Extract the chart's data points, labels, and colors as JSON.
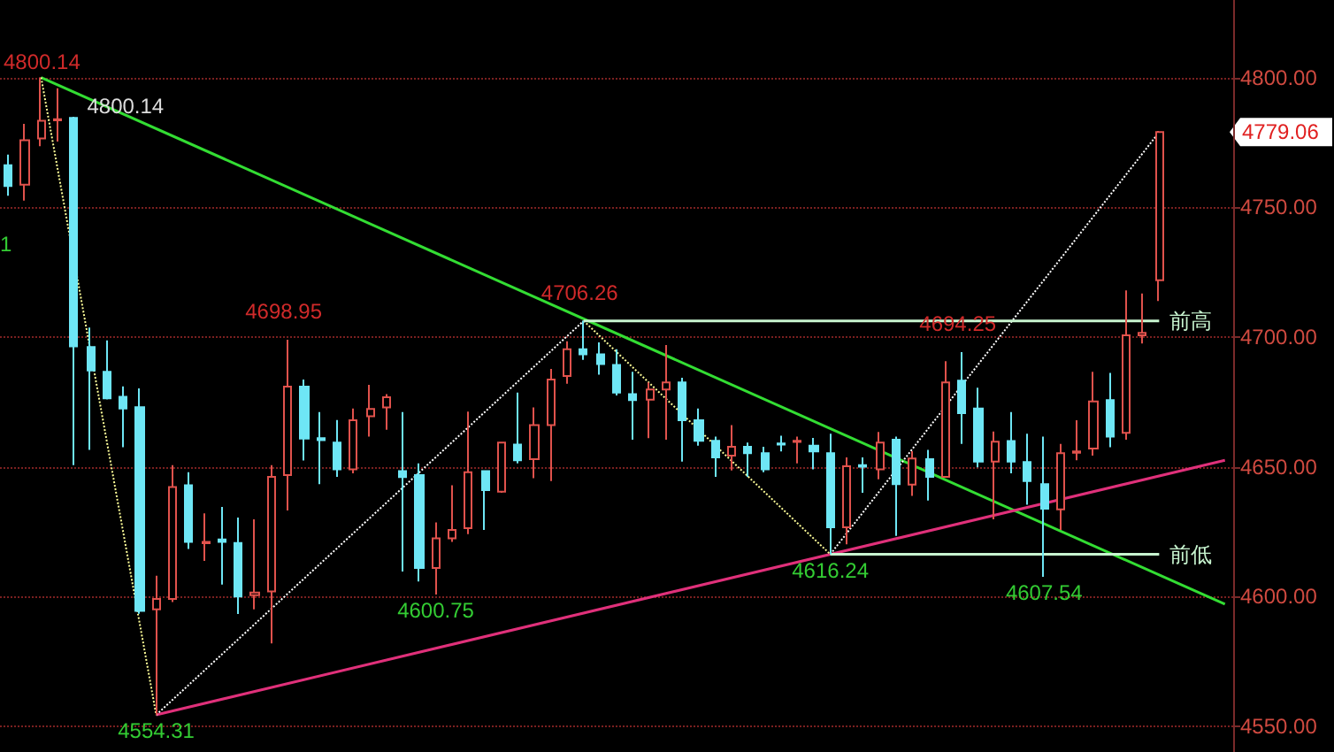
{
  "chart_data": {
    "type": "candlestick",
    "categories": [
      null,
      null,
      null,
      null,
      null,
      null,
      null,
      null,
      null,
      null,
      null,
      null,
      null,
      null,
      null,
      null,
      null,
      null,
      null,
      null,
      null,
      null,
      null,
      null,
      null,
      null,
      null,
      null,
      null,
      null,
      null,
      null,
      null,
      null,
      null,
      null,
      null,
      null,
      null,
      null,
      null,
      null,
      null,
      null,
      null,
      null,
      null,
      null,
      null,
      null,
      null,
      null,
      null,
      null,
      null,
      null,
      null,
      null,
      null,
      null,
      null,
      null,
      null,
      null,
      null,
      null,
      null,
      null,
      null,
      null,
      null,
      null,
      null,
      null,
      null
    ],
    "ohlc": [
      [
        4766.3,
        4770.4,
        4754.5,
        4758.3
      ],
      [
        4758.8,
        4782.2,
        4752.6,
        4775.9
      ],
      [
        4776.6,
        4800.14,
        4773.6,
        4783.4
      ],
      [
        4783.6,
        4796,
        4775.4,
        4784
      ],
      [
        4784.5,
        4785,
        4650.6,
        4696.4
      ],
      [
        4696.2,
        4703.7,
        4656.5,
        4687.1
      ],
      [
        4686.6,
        4698.7,
        4676,
        4676.4
      ],
      [
        4677,
        4681,
        4657.5,
        4672.5
      ],
      [
        4673,
        4680.2,
        4593.3,
        4594.4
      ],
      [
        4595,
        4608,
        4554.31,
        4599
      ],
      [
        4599,
        4650.6,
        4597.8,
        4642.2
      ],
      [
        4642.9,
        4647.9,
        4618.3,
        4621
      ],
      [
        4620.5,
        4632,
        4613.7,
        4621
      ],
      [
        4622,
        4634.5,
        4604.6,
        4621
      ],
      [
        4620.6,
        4630.4,
        4593.2,
        4600
      ],
      [
        4600.5,
        4629.7,
        4595,
        4601.5
      ],
      [
        4601.9,
        4650.6,
        4581.9,
        4646.1
      ],
      [
        4646.8,
        4698.95,
        4633.1,
        4680.9
      ],
      [
        4680.9,
        4683.6,
        4652.4,
        4660.9
      ],
      [
        4661,
        4671.1,
        4643.3,
        4660.3
      ],
      [
        4659.3,
        4668,
        4646.1,
        4649
      ],
      [
        4649,
        4672.5,
        4647.5,
        4667.9
      ],
      [
        4669.5,
        4681.6,
        4661.6,
        4672.3
      ],
      [
        4672.9,
        4678,
        4664.3,
        4676.8
      ],
      [
        4648.3,
        4671.1,
        4609.6,
        4646
      ],
      [
        4646.8,
        4651.3,
        4605.8,
        4611
      ],
      [
        4611,
        4628.5,
        4600.75,
        4622.4
      ],
      [
        4622.4,
        4642.9,
        4621,
        4625.6
      ],
      [
        4626.3,
        4671.3,
        4624,
        4647.9
      ],
      [
        4648.3,
        4648.3,
        4625.6,
        4641
      ],
      [
        4640.4,
        4659.3,
        4640,
        4659.3
      ],
      [
        4658.6,
        4678.6,
        4651.3,
        4652.5
      ],
      [
        4652.9,
        4672.9,
        4645.6,
        4666.1
      ],
      [
        4666.1,
        4687.7,
        4644.5,
        4683.6
      ],
      [
        4685,
        4698.4,
        4682,
        4695.3
      ],
      [
        4695.3,
        4706.26,
        4691.2,
        4693.4
      ],
      [
        4693.4,
        4698,
        4685.5,
        4689.6
      ],
      [
        4689.3,
        4695.3,
        4677.5,
        4678.6
      ],
      [
        4678,
        4686.6,
        4660.4,
        4675.7
      ],
      [
        4675.9,
        4682.5,
        4661,
        4679.8
      ],
      [
        4679.8,
        4696.9,
        4660.4,
        4682.5
      ],
      [
        4682.5,
        4684.3,
        4652,
        4667.9
      ],
      [
        4667.9,
        4672.5,
        4658.1,
        4660
      ],
      [
        4660,
        4661.6,
        4646.1,
        4653.6
      ],
      [
        4654.3,
        4666.1,
        4648.6,
        4657.7
      ],
      [
        4657.7,
        4659.3,
        4646.1,
        4655.2
      ],
      [
        4655.2,
        4657.7,
        4647.9,
        4649
      ],
      [
        4659,
        4662,
        4655.9,
        4658.6
      ],
      [
        4659.6,
        4661.6,
        4651.3,
        4660
      ],
      [
        4658.1,
        4661.1,
        4649,
        4655.9
      ],
      [
        4655.2,
        4662.7,
        4616.24,
        4626.7
      ],
      [
        4626.7,
        4653.6,
        4620.1,
        4650.2
      ],
      [
        4650.6,
        4653.6,
        4640,
        4650
      ],
      [
        4649,
        4663.4,
        4645.2,
        4659.3
      ],
      [
        4660.4,
        4661.6,
        4623.3,
        4643.3
      ],
      [
        4643.1,
        4656,
        4638.8,
        4653.2
      ],
      [
        4652.9,
        4656.5,
        4637,
        4646.1
      ],
      [
        4646.1,
        4690.7,
        4646.1,
        4682.5
      ],
      [
        4683.2,
        4694.25,
        4658.8,
        4670.7
      ],
      [
        4672.5,
        4680.5,
        4649.8,
        4652
      ],
      [
        4652,
        4663.6,
        4629.7,
        4659.7
      ],
      [
        4659.9,
        4671.1,
        4647.5,
        4652
      ],
      [
        4651.8,
        4662.7,
        4635.4,
        4644.5
      ],
      [
        4643.3,
        4661.6,
        4607.54,
        4633.8
      ],
      [
        4633.6,
        4658.8,
        4625.6,
        4655.2
      ],
      [
        4655.4,
        4667.9,
        4652.5,
        4655.9
      ],
      [
        4657,
        4686.6,
        4654.3,
        4675.2
      ],
      [
        4675.7,
        4686.2,
        4657.5,
        4661.6
      ],
      [
        4663.1,
        4718,
        4660.4,
        4700.7
      ],
      [
        4700.7,
        4716.8,
        4697.5,
        4701.6
      ],
      [
        4721.9,
        4779.5,
        4713.9,
        4779.06
      ],
      null,
      null,
      null,
      null
    ],
    "colors": [
      "#6ee6f5",
      "#e0524c",
      "#e0524c",
      "#e0524c",
      "#6ee6f5",
      "#6ee6f5",
      "#6ee6f5",
      "#6ee6f5",
      "#6ee6f5",
      "#e0524c",
      "#e0524c",
      "#6ee6f5",
      "#e0524c",
      "#6ee6f5",
      "#6ee6f5",
      "#e0524c",
      "#e0524c",
      "#e0524c",
      "#6ee6f5",
      "#6ee6f5",
      "#6ee6f5",
      "#e0524c",
      "#e0524c",
      "#e0524c",
      "#6ee6f5",
      "#6ee6f5",
      "#e0524c",
      "#e0524c",
      "#e0524c",
      "#6ee6f5",
      "#e0524c",
      "#6ee6f5",
      "#e0524c",
      "#e0524c",
      "#e0524c",
      "#6ee6f5",
      "#6ee6f5",
      "#6ee6f5",
      "#6ee6f5",
      "#e0524c",
      "#e0524c",
      "#6ee6f5",
      "#6ee6f5",
      "#6ee6f5",
      "#e0524c",
      "#6ee6f5",
      "#6ee6f5",
      "#6ee6f5",
      "#e0524c",
      "#6ee6f5",
      "#6ee6f5",
      "#e0524c",
      "#6ee6f5",
      "#e0524c",
      "#6ee6f5",
      "#e0524c",
      "#6ee6f5",
      "#e0524c",
      "#6ee6f5",
      "#6ee6f5",
      "#e0524c",
      "#6ee6f5",
      "#6ee6f5",
      "#6ee6f5",
      "#e0524c",
      "#e0524c",
      "#e0524c",
      "#6ee6f5",
      "#e0524c",
      "#e0524c",
      "#e0524c",
      null,
      null,
      null,
      null
    ],
    "series": [
      {
        "type": "line",
        "color": "#33dd33",
        "line_style": "solid",
        "values": [
          null,
          null,
          4800.14,
          null,
          null,
          null,
          null,
          null,
          null,
          null,
          null,
          null,
          null,
          null,
          null,
          null,
          null,
          null,
          null,
          null,
          null,
          null,
          null,
          null,
          null,
          null,
          null,
          null,
          null,
          null,
          null,
          null,
          null,
          null,
          null,
          null,
          null,
          null,
          null,
          null,
          null,
          null,
          null,
          null,
          null,
          null,
          null,
          null,
          null,
          null,
          null,
          null,
          null,
          null,
          null,
          null,
          null,
          null,
          null,
          null,
          null,
          null,
          null,
          null,
          null,
          null,
          null,
          null,
          null,
          null,
          null,
          null,
          null,
          null,
          4597
        ]
      },
      {
        "type": "line",
        "color": "#e0307a",
        "line_style": "solid",
        "values": [
          null,
          null,
          null,
          null,
          null,
          null,
          null,
          null,
          null,
          4554.31,
          null,
          null,
          null,
          null,
          null,
          null,
          null,
          null,
          null,
          null,
          null,
          null,
          null,
          null,
          null,
          null,
          null,
          null,
          null,
          null,
          null,
          null,
          null,
          null,
          null,
          null,
          null,
          null,
          null,
          null,
          null,
          null,
          null,
          null,
          null,
          null,
          null,
          null,
          null,
          null,
          null,
          null,
          null,
          null,
          null,
          null,
          null,
          null,
          null,
          null,
          null,
          null,
          null,
          null,
          null,
          null,
          null,
          null,
          null,
          null,
          null,
          null,
          null,
          null,
          4652.5
        ]
      },
      {
        "type": "line",
        "color": "#ffff99",
        "line_style": "dotted",
        "values": [
          null,
          null,
          4800.14,
          null,
          null,
          null,
          null,
          null,
          null,
          4554.31,
          null,
          null,
          null,
          null,
          null,
          null,
          null,
          null,
          null,
          null,
          null,
          null,
          null,
          null,
          null,
          null,
          null,
          null,
          null,
          null,
          null,
          null,
          null,
          null,
          null,
          null,
          null,
          null,
          null,
          null,
          null,
          null,
          null,
          null,
          null,
          null,
          null,
          null,
          null,
          null,
          null,
          null,
          null,
          null,
          null,
          null,
          null,
          null,
          null,
          null,
          null,
          null,
          null,
          null,
          null,
          null,
          null,
          null,
          null,
          null,
          null,
          null,
          null,
          null,
          null
        ]
      },
      {
        "type": "line",
        "color": "#ffffff",
        "line_style": "dotted",
        "values": [
          null,
          null,
          null,
          null,
          null,
          null,
          null,
          null,
          null,
          4554.31,
          null,
          null,
          null,
          null,
          null,
          null,
          null,
          null,
          null,
          null,
          null,
          null,
          null,
          null,
          null,
          null,
          null,
          null,
          null,
          null,
          null,
          null,
          null,
          null,
          null,
          4706.26,
          null,
          null,
          null,
          null,
          null,
          null,
          null,
          null,
          null,
          null,
          null,
          null,
          null,
          null,
          null,
          null,
          null,
          null,
          null,
          null,
          null,
          null,
          null,
          null,
          null,
          null,
          null,
          null,
          null,
          null,
          null,
          null,
          null,
          null,
          null,
          null,
          null,
          null,
          null
        ]
      },
      {
        "type": "line",
        "color": "#ffff99",
        "line_style": "dotted",
        "values": [
          null,
          null,
          null,
          null,
          null,
          null,
          null,
          null,
          null,
          null,
          null,
          null,
          null,
          null,
          null,
          null,
          null,
          null,
          null,
          null,
          null,
          null,
          null,
          null,
          null,
          null,
          null,
          null,
          null,
          null,
          null,
          null,
          null,
          null,
          null,
          4706.26,
          null,
          null,
          null,
          null,
          null,
          null,
          null,
          null,
          null,
          null,
          null,
          null,
          null,
          null,
          4616.24,
          null,
          null,
          null,
          null,
          null,
          null,
          null,
          null,
          null,
          null,
          null,
          null,
          null,
          null,
          null,
          null,
          null,
          null,
          null,
          null,
          null,
          null,
          null,
          null
        ]
      },
      {
        "type": "line",
        "color": "#ffffff",
        "line_style": "dotted",
        "values": [
          null,
          null,
          null,
          null,
          null,
          null,
          null,
          null,
          null,
          null,
          null,
          null,
          null,
          null,
          null,
          null,
          null,
          null,
          null,
          null,
          null,
          null,
          null,
          null,
          null,
          null,
          null,
          null,
          null,
          null,
          null,
          null,
          null,
          null,
          null,
          null,
          null,
          null,
          null,
          null,
          null,
          null,
          null,
          null,
          null,
          null,
          null,
          null,
          null,
          null,
          4616.24,
          null,
          null,
          null,
          null,
          null,
          null,
          null,
          null,
          null,
          null,
          null,
          null,
          null,
          null,
          null,
          null,
          null,
          null,
          null,
          4779.06,
          null,
          null,
          null,
          null
        ]
      },
      {
        "type": "line",
        "name": "前高",
        "color": "#c8f5d0",
        "line_style": "solid",
        "values": [
          null,
          null,
          null,
          null,
          null,
          null,
          null,
          null,
          null,
          null,
          null,
          null,
          null,
          null,
          null,
          null,
          null,
          null,
          null,
          null,
          null,
          null,
          null,
          null,
          null,
          null,
          null,
          null,
          null,
          null,
          null,
          null,
          null,
          null,
          null,
          4706.26,
          null,
          null,
          null,
          null,
          null,
          null,
          null,
          null,
          null,
          null,
          null,
          null,
          null,
          null,
          null,
          null,
          null,
          null,
          null,
          null,
          null,
          null,
          null,
          null,
          null,
          null,
          null,
          null,
          null,
          null,
          null,
          null,
          null,
          null,
          4706.26,
          null,
          null,
          null,
          null
        ]
      },
      {
        "type": "line",
        "name": "前低",
        "color": "#c8f5d0",
        "line_style": "solid",
        "values": [
          null,
          null,
          null,
          null,
          null,
          null,
          null,
          null,
          null,
          null,
          null,
          null,
          null,
          null,
          null,
          null,
          null,
          null,
          null,
          null,
          null,
          null,
          null,
          null,
          null,
          null,
          null,
          null,
          null,
          null,
          null,
          null,
          null,
          null,
          null,
          null,
          null,
          null,
          null,
          null,
          null,
          null,
          null,
          null,
          null,
          null,
          null,
          null,
          null,
          null,
          4616.24,
          null,
          null,
          null,
          null,
          null,
          null,
          null,
          null,
          null,
          null,
          null,
          null,
          null,
          null,
          null,
          null,
          null,
          null,
          null,
          4616.24,
          null,
          null,
          null,
          null
        ]
      }
    ],
    "ylim": [
      4540,
      4830
    ],
    "yticks": [
      {
        "value": 4550,
        "label": "4550.00"
      },
      {
        "value": 4600,
        "label": "4600.00"
      },
      {
        "value": 4650,
        "label": "4650.00"
      },
      {
        "value": 4700,
        "label": "4700.00"
      },
      {
        "value": 4750,
        "label": "4750.00"
      },
      {
        "value": 4800,
        "label": "4800.00"
      }
    ],
    "tick_labels": "y",
    "grid": "y",
    "marker": "none",
    "annotations": [
      "4800.14",
      {
        "text": "4800.14",
        "y": 4800.14
      },
      {
        "text": "4698.95",
        "y": 4698.95
      },
      {
        "text": "4706.26",
        "y": 4706.26
      },
      {
        "text": "4694.25",
        "y": 4694.25
      },
      {
        "text": "4554.31",
        "y": 4554.31
      },
      {
        "text": "4600.75",
        "y": 4600.75
      },
      {
        "text": "4616.24",
        "y": 4616.24
      },
      {
        "text": "4607.54",
        "y": 4607.54
      },
      "4779.06",
      "1"
    ]
  }
}
